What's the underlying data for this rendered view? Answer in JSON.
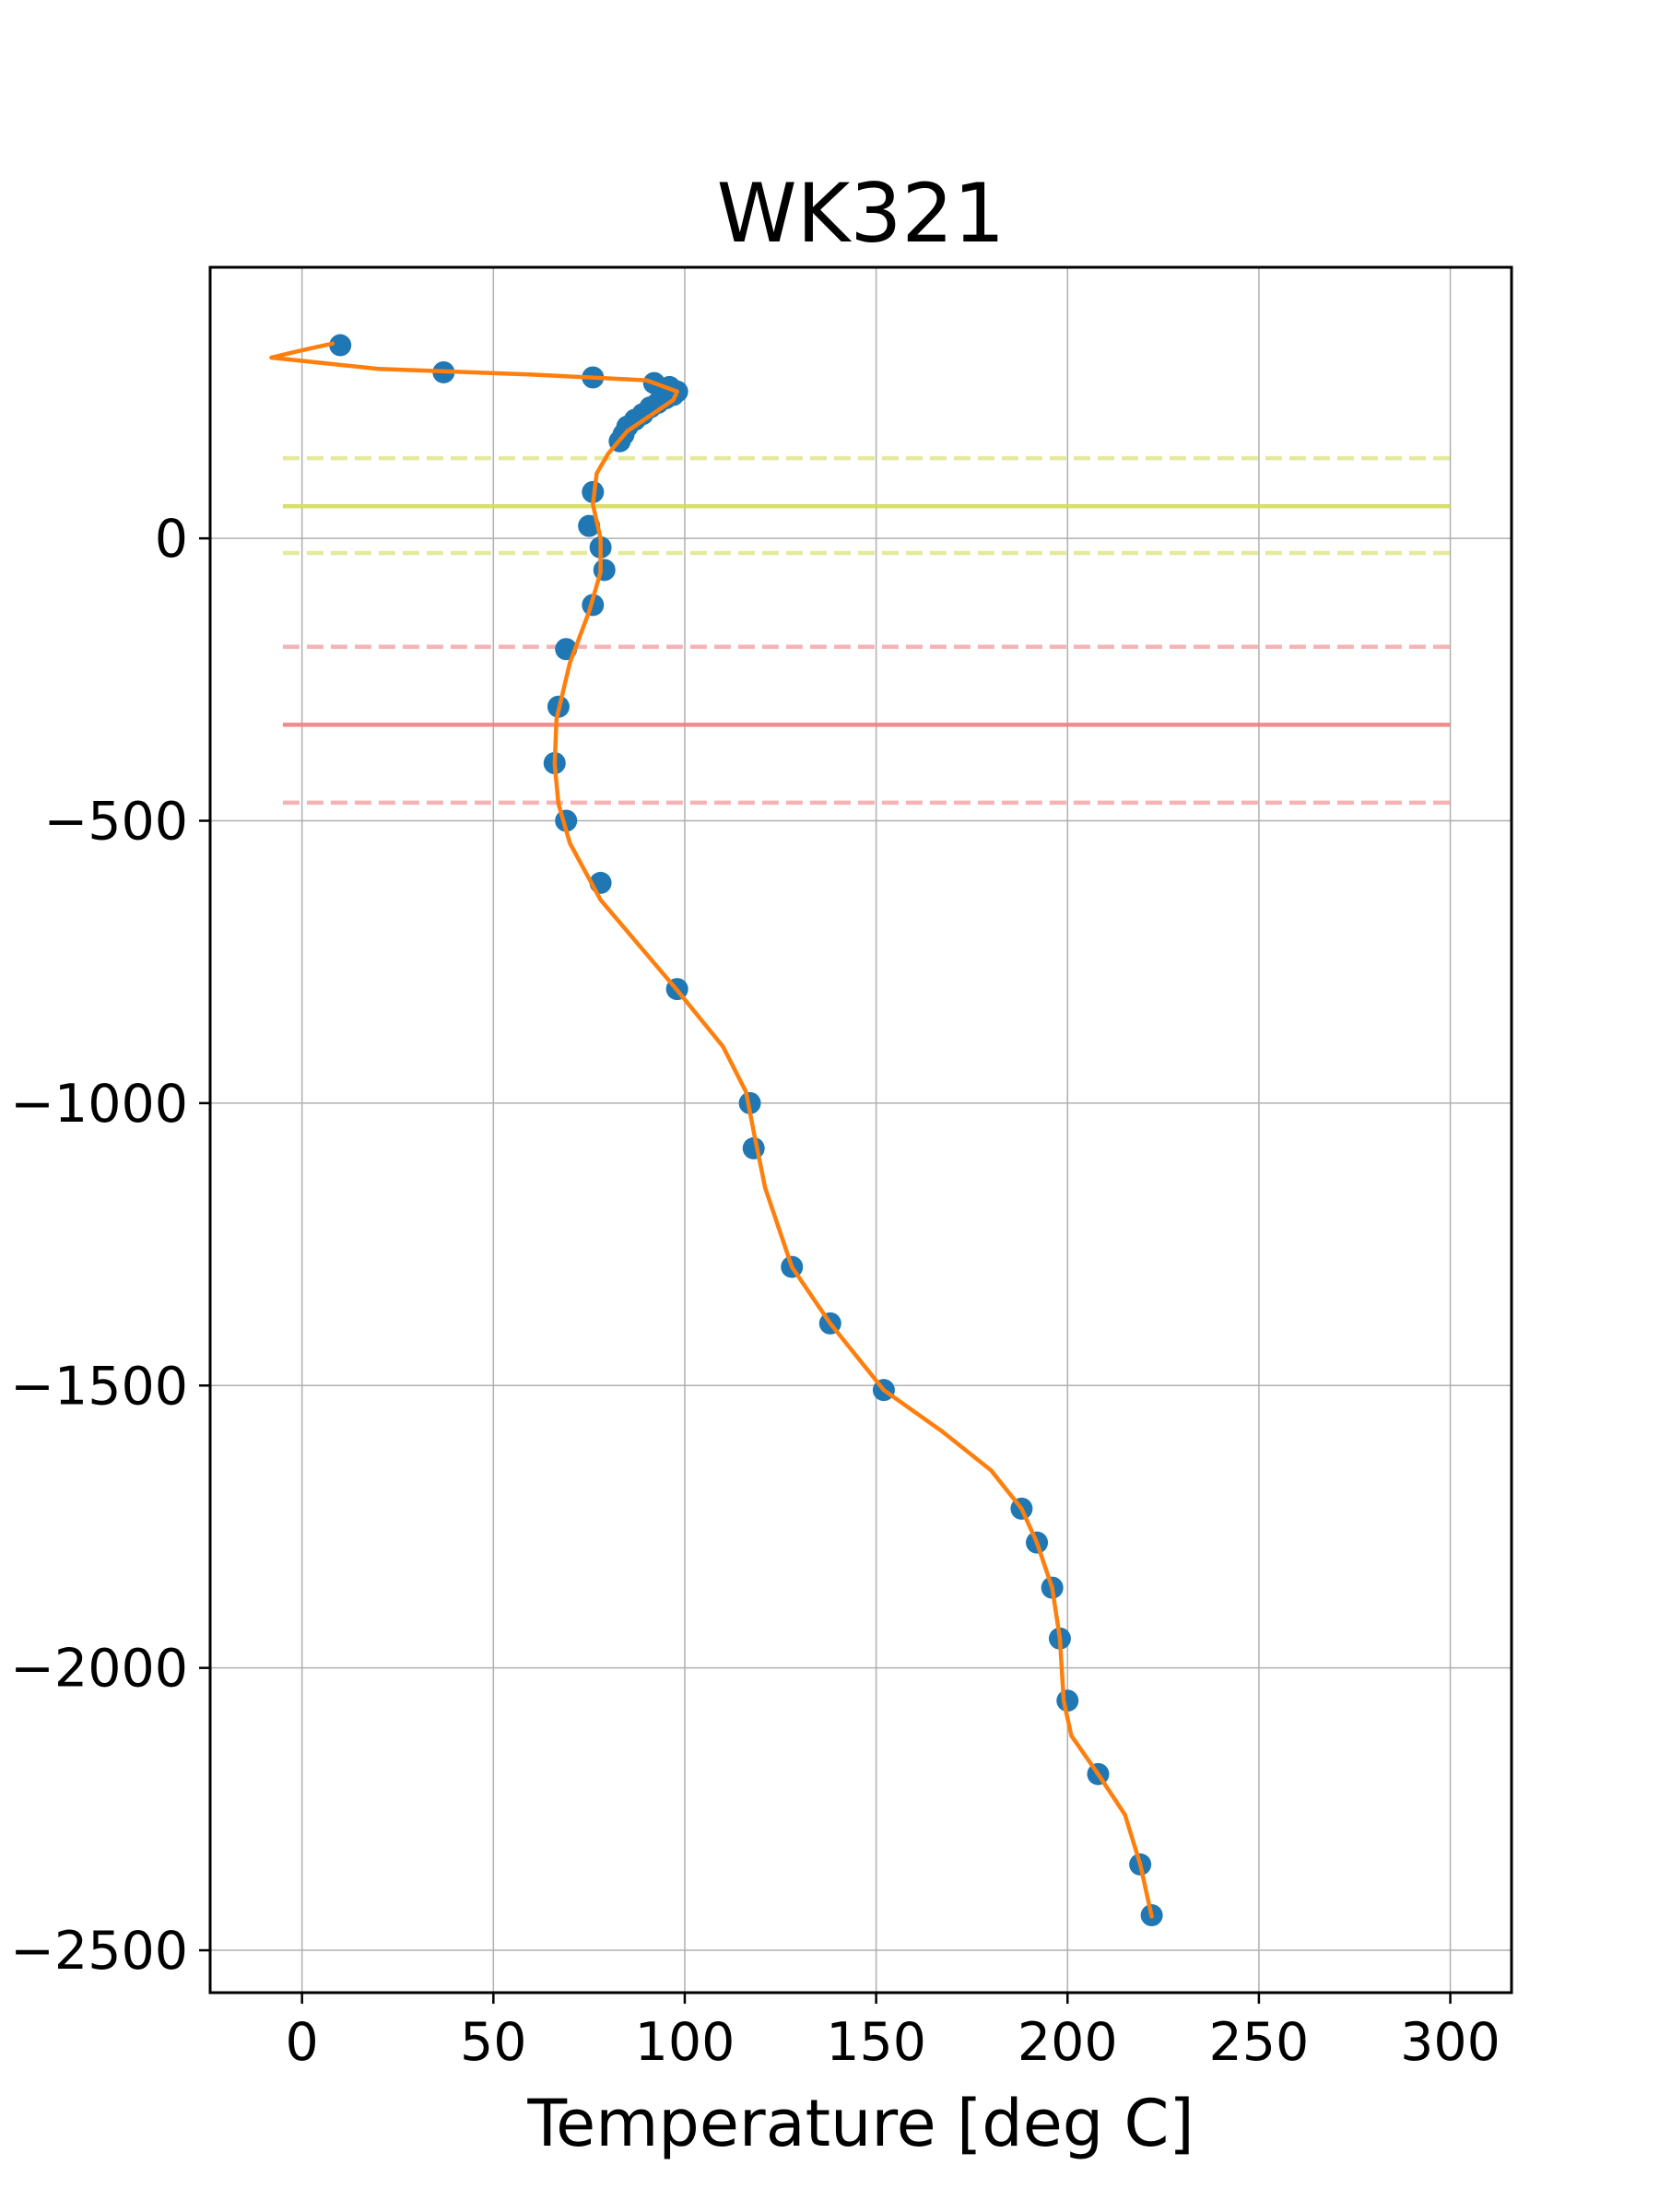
{
  "chart_data": {
    "type": "scatter",
    "title": "WK321",
    "xlabel": "Temperature [deg C]",
    "ylabel": "",
    "xlim": [
      -24,
      316
    ],
    "ylim": [
      -2575,
      480
    ],
    "x_ticks": [
      0,
      50,
      100,
      150,
      200,
      250,
      300
    ],
    "x_tick_labels": [
      "0",
      "50",
      "100",
      "150",
      "200",
      "250",
      "300"
    ],
    "y_ticks": [
      0,
      -500,
      -1000,
      -1500,
      -2000,
      -2500
    ],
    "y_tick_labels": [
      "0",
      "−500",
      "−1000",
      "−1500",
      "−2000",
      "−2500"
    ],
    "grid": true,
    "colors": {
      "points": "#1f77b4",
      "fit_line": "#ff7f0e",
      "yellow_band": "#d4db5a",
      "red_band": "#f08080",
      "grid": "#b0b0b0"
    },
    "series": [
      {
        "kind": "points",
        "x": [
          10,
          37,
          76,
          92,
          96,
          98,
          97,
          95,
          93,
          91,
          89,
          87,
          85,
          84,
          83,
          76,
          75,
          78,
          79,
          76,
          69,
          67,
          66,
          69,
          78,
          98,
          117,
          118,
          128,
          138,
          152,
          188,
          192,
          196,
          198,
          200,
          208,
          219,
          222
        ],
        "y": [
          342,
          294,
          285,
          275,
          268,
          260,
          254,
          248,
          240,
          232,
          220,
          210,
          198,
          184,
          172,
          82,
          22,
          -16,
          -56,
          -118,
          -196,
          -298,
          -398,
          -500,
          -610,
          -798,
          -1000,
          -1080,
          -1290,
          -1390,
          -1508,
          -1718,
          -1778,
          -1858,
          -1948,
          -2058,
          -2188,
          -2348,
          -2438
        ]
      },
      {
        "kind": "line",
        "x": [
          8,
          -2,
          -8,
          20,
          60,
          90,
          98,
          97,
          92,
          85,
          80,
          77,
          76,
          78,
          78,
          75,
          70,
          66.5,
          66,
          67,
          70,
          78,
          88,
          98,
          110,
          116,
          118,
          121,
          128,
          138,
          152,
          167,
          180,
          188,
          192,
          196,
          198,
          199,
          201,
          208,
          215,
          219,
          222
        ],
        "y": [
          345,
          330,
          320,
          300,
          290,
          280,
          260,
          245,
          222,
          190,
          150,
          115,
          60,
          0,
          -60,
          -130,
          -220,
          -320,
          -400,
          -470,
          -540,
          -640,
          -720,
          -800,
          -900,
          -980,
          -1050,
          -1150,
          -1290,
          -1390,
          -1508,
          -1580,
          -1650,
          -1718,
          -1778,
          -1858,
          -1948,
          -2058,
          -2120,
          -2188,
          -2260,
          -2348,
          -2440
        ]
      },
      {
        "kind": "hline",
        "y": 57,
        "x_range": [
          -5,
          300
        ],
        "style": "solid",
        "color": "#d4db5a"
      },
      {
        "kind": "hline",
        "y": 142,
        "x_range": [
          -5,
          300
        ],
        "style": "dashed",
        "color": "#d4db5a"
      },
      {
        "kind": "hline",
        "y": -26,
        "x_range": [
          -5,
          300
        ],
        "style": "dashed",
        "color": "#d4db5a"
      },
      {
        "kind": "hline",
        "y": -330,
        "x_range": [
          -5,
          300
        ],
        "style": "solid",
        "color": "#f08080"
      },
      {
        "kind": "hline",
        "y": -192,
        "x_range": [
          -5,
          300
        ],
        "style": "dashed",
        "color": "#f08080"
      },
      {
        "kind": "hline",
        "y": -468,
        "x_range": [
          -5,
          300
        ],
        "style": "dashed",
        "color": "#f08080"
      }
    ]
  }
}
